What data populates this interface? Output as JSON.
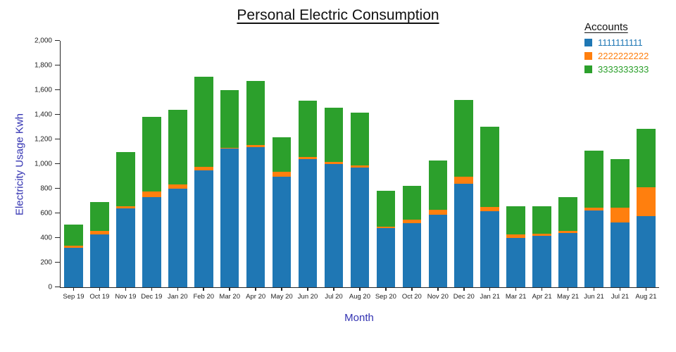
{
  "title": "Personal Electric Consumption",
  "xlabel": "Month",
  "ylabel": "Electricity Usage Kwh",
  "legend": {
    "title": "Accounts",
    "items": [
      {
        "label": "1111111111",
        "color": "#1f77b4"
      },
      {
        "label": "2222222222",
        "color": "#ff7f0e"
      },
      {
        "label": "3333333333",
        "color": "#2ca02c"
      }
    ]
  },
  "chart_data": {
    "type": "bar",
    "stacked": true,
    "title": "Personal Electric Consumption",
    "xlabel": "Month",
    "ylabel": "Electricity Usage Kwh",
    "ylim": [
      0,
      2000
    ],
    "ytick_step": 200,
    "legend_position": "top-right",
    "grid": false,
    "categories": [
      "Sep 19",
      "Oct 19",
      "Nov 19",
      "Dec 19",
      "Jan 20",
      "Feb 20",
      "Mar 20",
      "Apr 20",
      "May 20",
      "Jun 20",
      "Jul 20",
      "Aug 20",
      "Sep 20",
      "Oct 20",
      "Nov 20",
      "Dec 20",
      "Jan 21",
      "Mar 21",
      "Apr 21",
      "May 21",
      "Jun 21",
      "Jul 21",
      "Aug 21"
    ],
    "series": [
      {
        "name": "1111111111",
        "color": "#1f77b4",
        "values": [
          320,
          430,
          640,
          730,
          800,
          950,
          1125,
          1140,
          900,
          1040,
          1000,
          970,
          480,
          520,
          590,
          840,
          620,
          400,
          420,
          440,
          625,
          525,
          580
        ]
      },
      {
        "name": "2222222222",
        "color": "#ff7f0e",
        "values": [
          20,
          25,
          15,
          45,
          35,
          25,
          5,
          15,
          40,
          20,
          15,
          20,
          10,
          30,
          40,
          55,
          30,
          30,
          15,
          15,
          20,
          120,
          230
        ]
      },
      {
        "name": "3333333333",
        "color": "#2ca02c",
        "values": [
          170,
          235,
          440,
          610,
          605,
          735,
          470,
          520,
          275,
          455,
          440,
          430,
          295,
          275,
          400,
          625,
          655,
          225,
          220,
          275,
          465,
          395,
          475
        ]
      }
    ]
  }
}
